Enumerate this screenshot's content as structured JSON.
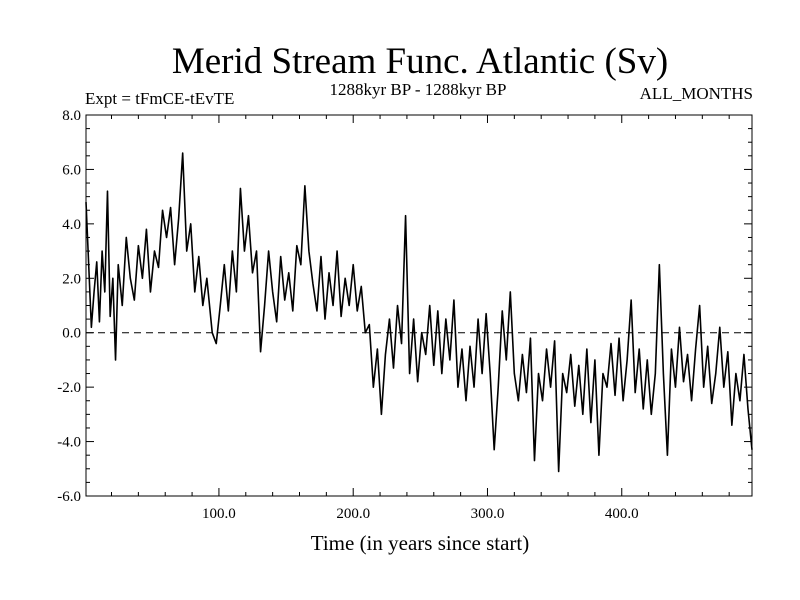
{
  "chart_data": {
    "type": "line",
    "title": "Merid Stream Func. Atlantic (Sv)",
    "subtitle_left": "Expt = tFmCE-tEvTE",
    "subtitle_center": "1288kyr BP - 1288kyr BP",
    "subtitle_right": "ALL_MONTHS",
    "xlabel": "Time (in years since start)",
    "ylabel": "",
    "xlim": [
      1,
      497
    ],
    "ylim": [
      -6,
      8
    ],
    "x_ticks": [
      100,
      200,
      300,
      400
    ],
    "x_tick_labels": [
      "100.0",
      "200.0",
      "300.0",
      "400.0"
    ],
    "y_ticks": [
      -6,
      -4,
      -2,
      0,
      2,
      4,
      6,
      8
    ],
    "y_tick_labels": [
      "-6.0",
      "-4.0",
      "-2.0",
      "0.0",
      "2.0",
      "4.0",
      "6.0",
      "8.0"
    ],
    "reference_line": {
      "y": 0,
      "style": "dashed"
    },
    "anchors": [
      [
        1,
        4.8
      ],
      [
        3,
        2.5
      ],
      [
        5,
        0.2
      ],
      [
        7,
        1.5
      ],
      [
        9,
        2.6
      ],
      [
        11,
        0.4
      ],
      [
        13,
        3.0
      ],
      [
        15,
        1.5
      ],
      [
        17,
        5.2
      ],
      [
        19,
        0.6
      ],
      [
        21,
        2.0
      ],
      [
        23,
        -1.0
      ],
      [
        25,
        2.5
      ],
      [
        28,
        1.0
      ],
      [
        31,
        3.5
      ],
      [
        34,
        2.0
      ],
      [
        37,
        1.2
      ],
      [
        40,
        3.2
      ],
      [
        43,
        2.0
      ],
      [
        46,
        3.8
      ],
      [
        49,
        1.5
      ],
      [
        52,
        3.0
      ],
      [
        55,
        2.4
      ],
      [
        58,
        4.5
      ],
      [
        61,
        3.5
      ],
      [
        64,
        4.6
      ],
      [
        67,
        2.5
      ],
      [
        70,
        4.2
      ],
      [
        73,
        6.6
      ],
      [
        76,
        3.0
      ],
      [
        79,
        4.0
      ],
      [
        82,
        1.5
      ],
      [
        85,
        2.8
      ],
      [
        88,
        1.0
      ],
      [
        91,
        2.0
      ],
      [
        95,
        0.0
      ],
      [
        98,
        -0.4
      ],
      [
        101,
        1.0
      ],
      [
        104,
        2.5
      ],
      [
        107,
        0.8
      ],
      [
        110,
        3.0
      ],
      [
        113,
        1.5
      ],
      [
        116,
        5.3
      ],
      [
        119,
        3.0
      ],
      [
        122,
        4.3
      ],
      [
        125,
        2.2
      ],
      [
        128,
        3.0
      ],
      [
        131,
        -0.7
      ],
      [
        134,
        1.0
      ],
      [
        137,
        3.0
      ],
      [
        140,
        1.5
      ],
      [
        143,
        0.4
      ],
      [
        146,
        2.8
      ],
      [
        149,
        1.2
      ],
      [
        152,
        2.2
      ],
      [
        155,
        0.8
      ],
      [
        158,
        3.2
      ],
      [
        161,
        2.5
      ],
      [
        164,
        5.4
      ],
      [
        167,
        3.0
      ],
      [
        170,
        1.8
      ],
      [
        173,
        0.8
      ],
      [
        176,
        2.8
      ],
      [
        179,
        0.5
      ],
      [
        182,
        2.2
      ],
      [
        185,
        1.0
      ],
      [
        188,
        3.0
      ],
      [
        191,
        0.6
      ],
      [
        194,
        2.0
      ],
      [
        197,
        1.0
      ],
      [
        200,
        2.5
      ],
      [
        203,
        0.8
      ],
      [
        206,
        1.7
      ],
      [
        209,
        0.0
      ],
      [
        212,
        0.3
      ],
      [
        215,
        -2.0
      ],
      [
        218,
        -0.6
      ],
      [
        221,
        -3.0
      ],
      [
        224,
        -0.8
      ],
      [
        227,
        0.5
      ],
      [
        230,
        -1.3
      ],
      [
        233,
        1.0
      ],
      [
        236,
        -0.4
      ],
      [
        239,
        4.3
      ],
      [
        242,
        -1.5
      ],
      [
        245,
        0.5
      ],
      [
        248,
        -1.8
      ],
      [
        251,
        0.0
      ],
      [
        254,
        -0.8
      ],
      [
        257,
        1.0
      ],
      [
        260,
        -1.2
      ],
      [
        263,
        0.8
      ],
      [
        266,
        -1.5
      ],
      [
        269,
        0.5
      ],
      [
        272,
        -1.0
      ],
      [
        275,
        1.2
      ],
      [
        278,
        -2.0
      ],
      [
        281,
        -0.6
      ],
      [
        284,
        -2.5
      ],
      [
        287,
        -0.5
      ],
      [
        290,
        -2.0
      ],
      [
        293,
        0.5
      ],
      [
        296,
        -1.5
      ],
      [
        299,
        0.7
      ],
      [
        302,
        -1.5
      ],
      [
        305,
        -4.3
      ],
      [
        308,
        -2.0
      ],
      [
        311,
        0.8
      ],
      [
        314,
        -1.0
      ],
      [
        317,
        1.5
      ],
      [
        320,
        -1.5
      ],
      [
        323,
        -2.5
      ],
      [
        326,
        -0.8
      ],
      [
        329,
        -2.2
      ],
      [
        332,
        -0.2
      ],
      [
        335,
        -4.7
      ],
      [
        338,
        -1.5
      ],
      [
        341,
        -2.5
      ],
      [
        344,
        -0.6
      ],
      [
        347,
        -2.0
      ],
      [
        350,
        -0.3
      ],
      [
        353,
        -5.1
      ],
      [
        356,
        -1.5
      ],
      [
        359,
        -2.2
      ],
      [
        362,
        -0.8
      ],
      [
        365,
        -2.7
      ],
      [
        368,
        -1.2
      ],
      [
        371,
        -3.0
      ],
      [
        374,
        -0.6
      ],
      [
        377,
        -3.3
      ],
      [
        380,
        -1.0
      ],
      [
        383,
        -4.5
      ],
      [
        386,
        -1.5
      ],
      [
        389,
        -2.0
      ],
      [
        392,
        -0.4
      ],
      [
        395,
        -2.3
      ],
      [
        398,
        -0.2
      ],
      [
        401,
        -2.5
      ],
      [
        404,
        -1.0
      ],
      [
        407,
        1.2
      ],
      [
        410,
        -2.2
      ],
      [
        413,
        -0.6
      ],
      [
        416,
        -2.8
      ],
      [
        419,
        -1.0
      ],
      [
        422,
        -3.0
      ],
      [
        425,
        -1.5
      ],
      [
        428,
        2.5
      ],
      [
        431,
        -1.5
      ],
      [
        434,
        -4.5
      ],
      [
        437,
        -0.6
      ],
      [
        440,
        -2.0
      ],
      [
        443,
        0.2
      ],
      [
        446,
        -1.8
      ],
      [
        449,
        -0.8
      ],
      [
        452,
        -2.5
      ],
      [
        455,
        -0.6
      ],
      [
        458,
        1.0
      ],
      [
        461,
        -2.0
      ],
      [
        464,
        -0.5
      ],
      [
        467,
        -2.6
      ],
      [
        470,
        -1.5
      ],
      [
        473,
        0.2
      ],
      [
        476,
        -2.0
      ],
      [
        479,
        -0.7
      ],
      [
        482,
        -3.4
      ],
      [
        485,
        -1.5
      ],
      [
        488,
        -2.5
      ],
      [
        491,
        -0.8
      ],
      [
        494,
        -2.8
      ],
      [
        497,
        -4.3
      ]
    ]
  }
}
